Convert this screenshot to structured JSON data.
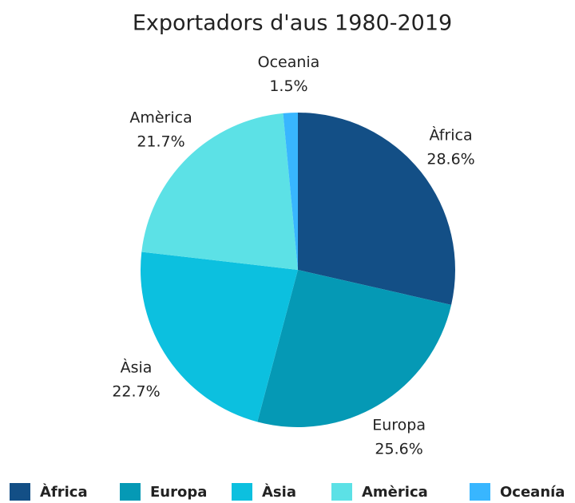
{
  "chart_data": {
    "type": "pie",
    "title": "Exportadors d'aus 1980-2019",
    "categories": [
      "Àfrica",
      "Europa",
      "Àsia",
      "Amèrica",
      "Oceania"
    ],
    "values": [
      28.6,
      25.6,
      22.7,
      21.7,
      1.5
    ],
    "value_labels": [
      "28.6%",
      "25.6%",
      "22.7%",
      "21.7%",
      "1.5%"
    ],
    "colors": [
      "#134f86",
      "#0599b5",
      "#0cc0df",
      "#5ce1e6",
      "#38b6ff"
    ],
    "legend_labels": [
      "Àfrica",
      "Europa",
      "Àsia",
      "Amèrica",
      "Oceanía"
    ],
    "legend": "bottom"
  }
}
